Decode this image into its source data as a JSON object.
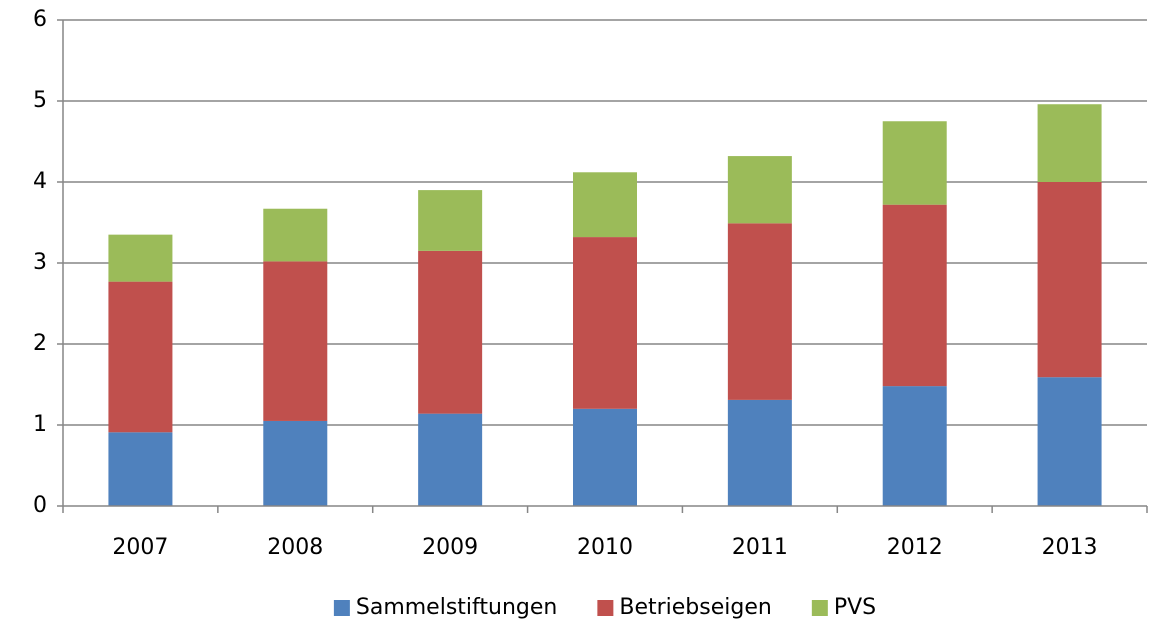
{
  "chart_data": {
    "type": "stacked_bar",
    "categories": [
      "2007",
      "2008",
      "2009",
      "2010",
      "2011",
      "2012",
      "2013"
    ],
    "series": [
      {
        "name": "Sammelstiftungen",
        "color": "#4f81bd",
        "values": [
          0.91,
          1.05,
          1.14,
          1.2,
          1.31,
          1.48,
          1.59
        ]
      },
      {
        "name": "Betriebseigen",
        "color": "#c0504d",
        "values": [
          1.86,
          1.97,
          2.01,
          2.12,
          2.18,
          2.24,
          2.41
        ]
      },
      {
        "name": "PVS",
        "color": "#9bbb59",
        "values": [
          0.58,
          0.65,
          0.75,
          0.8,
          0.83,
          1.03,
          0.96
        ]
      }
    ],
    "ylim": [
      0,
      6
    ],
    "yticks": [
      0,
      1,
      2,
      3,
      4,
      5,
      6
    ],
    "grid": true,
    "legend": "bottom"
  }
}
